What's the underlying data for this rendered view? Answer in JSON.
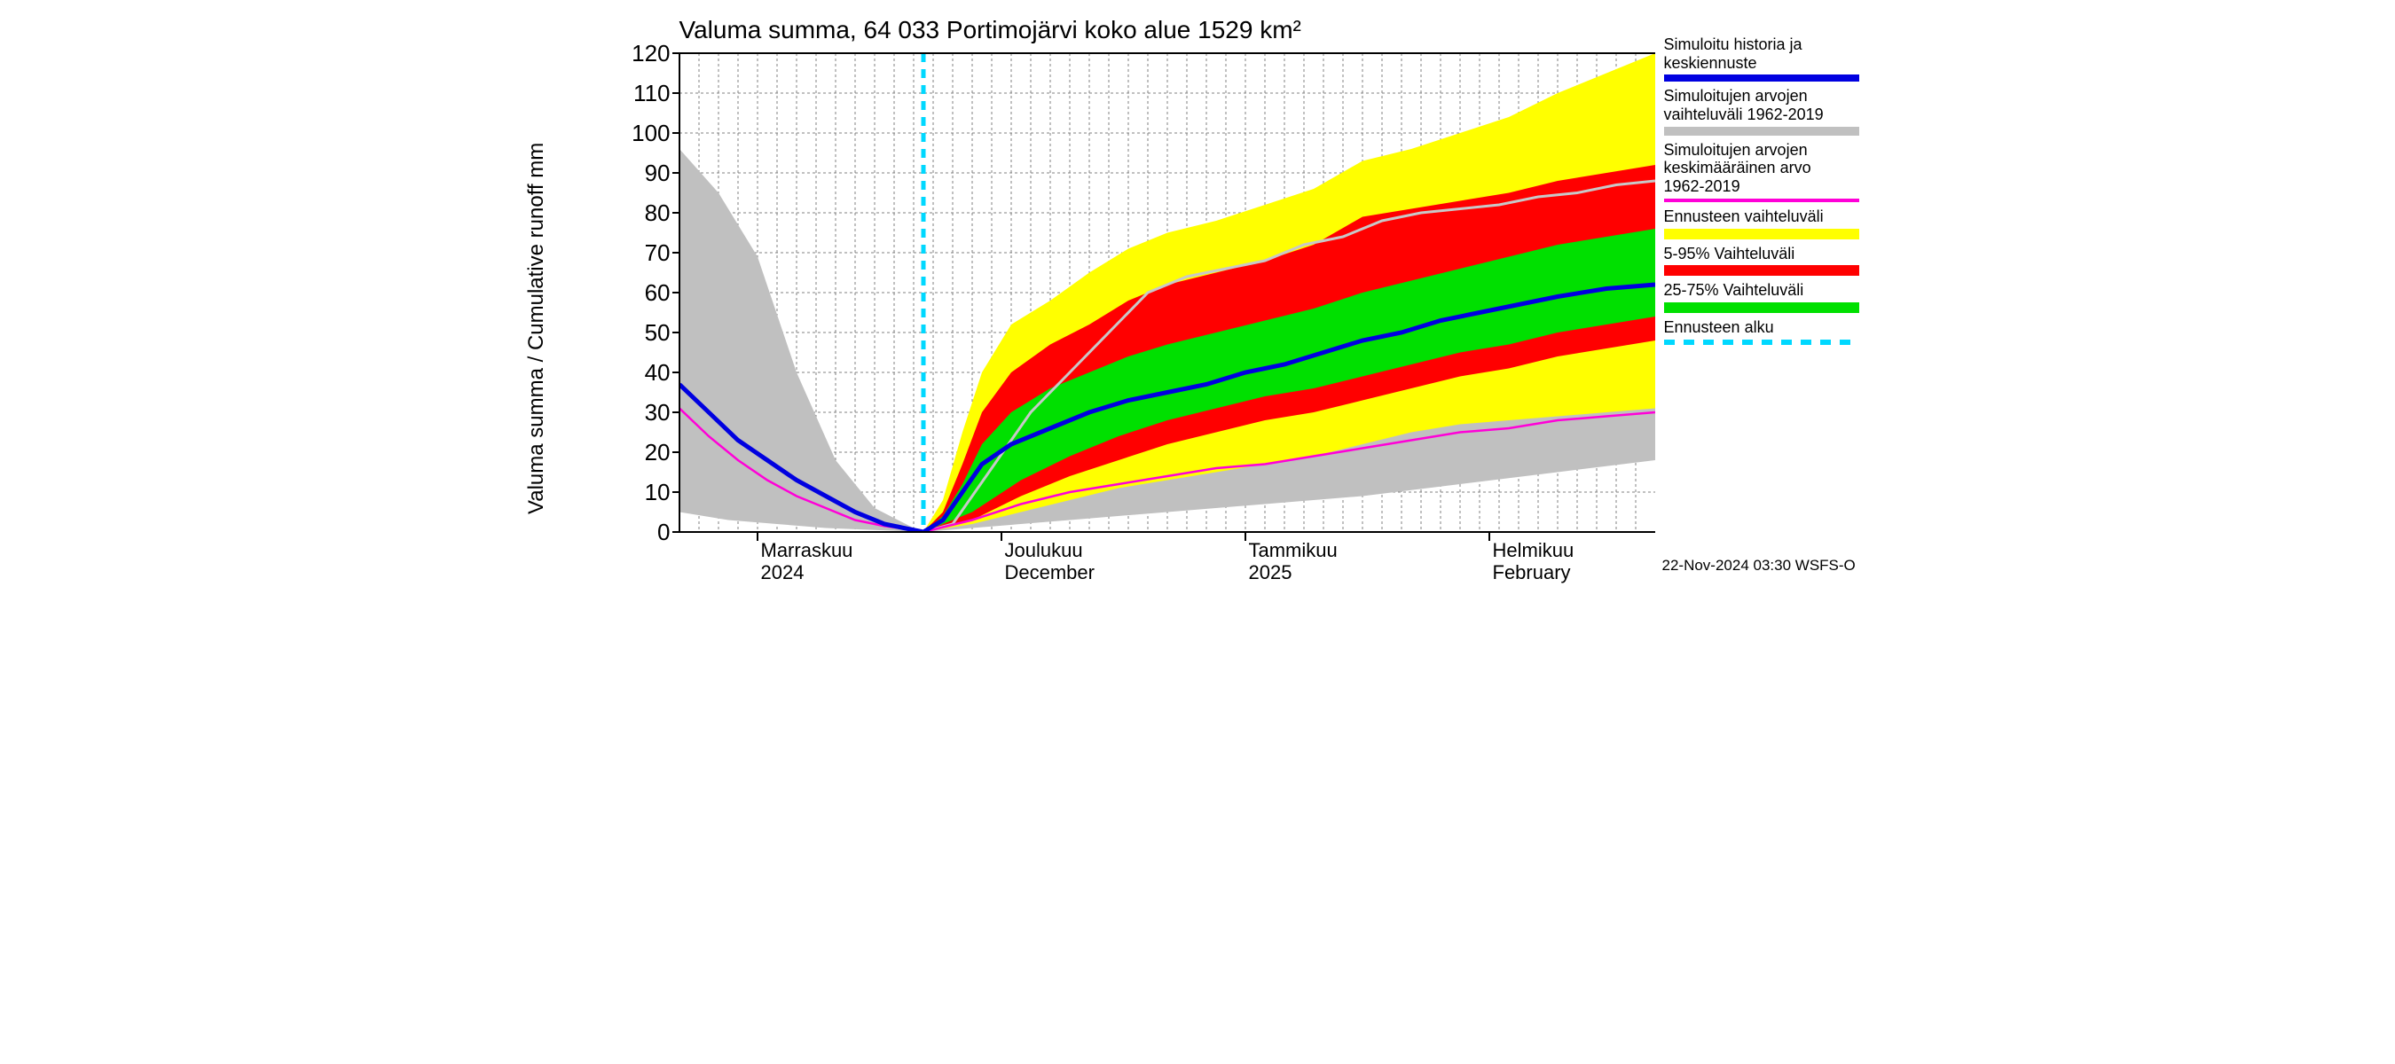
{
  "chart": {
    "type": "area-line",
    "title": "Valuma summa, 64 033 Portimojärvi koko alue 1529 km²",
    "ylabel": "Valuma summa / Cumulative runoff    mm",
    "footer": "22-Nov-2024 03:30 WSFS-O",
    "background_color": "#ffffff",
    "grid_color": "#808080",
    "axis_color": "#000000",
    "title_fontsize": 28,
    "label_fontsize": 24,
    "tick_fontsize": 24,
    "x_domain": [
      0,
      100
    ],
    "forecast_start_x": 25,
    "ylim": [
      0,
      120
    ],
    "ytick_step": 10,
    "yticks": [
      0,
      10,
      20,
      30,
      40,
      50,
      60,
      70,
      80,
      90,
      100,
      110,
      120
    ],
    "xgrid_minor": [
      2,
      4,
      6,
      8,
      10,
      12,
      14,
      16,
      18,
      20,
      22,
      24,
      26,
      28,
      30,
      32,
      34,
      36,
      38,
      40,
      42,
      44,
      46,
      48,
      50,
      52,
      54,
      56,
      58,
      60,
      62,
      64,
      66,
      68,
      70,
      72,
      74,
      76,
      78,
      80,
      82,
      84,
      86,
      88,
      90,
      92,
      94,
      96,
      98
    ],
    "xgrid_major": [
      8,
      33,
      58,
      83
    ],
    "xlabels": [
      {
        "x": 8,
        "line1": "Marraskuu",
        "line2": "2024"
      },
      {
        "x": 33,
        "line1": "Joulukuu",
        "line2": "December"
      },
      {
        "x": 58,
        "line1": "Tammikuu",
        "line2": "2025"
      },
      {
        "x": 83,
        "line1": "Helmikuu",
        "line2": "February"
      }
    ],
    "colors": {
      "history_range": "#c0c0c0",
      "forecast_wide": "#ffff00",
      "pct5_95": "#ff0000",
      "pct25_75": "#00e000",
      "median": "#0000e0",
      "mean_hist": "#ff00d8",
      "hist_upper_line": "#c8c8c8",
      "forecast_start": "#00d8ff"
    },
    "line_widths": {
      "median": 5,
      "mean_hist": 2.5,
      "hist_upper_line": 3,
      "forecast_start": 5
    },
    "series": {
      "grey_band": {
        "upper": [
          {
            "x": 0,
            "y": 96
          },
          {
            "x": 4,
            "y": 85
          },
          {
            "x": 8,
            "y": 69
          },
          {
            "x": 12,
            "y": 40
          },
          {
            "x": 16,
            "y": 18
          },
          {
            "x": 20,
            "y": 6
          },
          {
            "x": 24,
            "y": 1
          },
          {
            "x": 25,
            "y": 0
          },
          {
            "x": 28,
            "y": 2
          },
          {
            "x": 32,
            "y": 16
          },
          {
            "x": 36,
            "y": 30
          },
          {
            "x": 40,
            "y": 40
          },
          {
            "x": 44,
            "y": 50
          },
          {
            "x": 48,
            "y": 60
          },
          {
            "x": 52,
            "y": 64
          },
          {
            "x": 56,
            "y": 66
          },
          {
            "x": 60,
            "y": 68
          },
          {
            "x": 64,
            "y": 72
          },
          {
            "x": 68,
            "y": 74
          },
          {
            "x": 72,
            "y": 78
          },
          {
            "x": 76,
            "y": 80
          },
          {
            "x": 80,
            "y": 81
          },
          {
            "x": 84,
            "y": 82
          },
          {
            "x": 88,
            "y": 84
          },
          {
            "x": 92,
            "y": 85
          },
          {
            "x": 96,
            "y": 87
          },
          {
            "x": 100,
            "y": 88
          }
        ],
        "lower": [
          {
            "x": 0,
            "y": 5
          },
          {
            "x": 5,
            "y": 3
          },
          {
            "x": 10,
            "y": 2
          },
          {
            "x": 15,
            "y": 1
          },
          {
            "x": 20,
            "y": 0.5
          },
          {
            "x": 25,
            "y": 0
          },
          {
            "x": 30,
            "y": 1
          },
          {
            "x": 40,
            "y": 3
          },
          {
            "x": 50,
            "y": 5
          },
          {
            "x": 60,
            "y": 7
          },
          {
            "x": 70,
            "y": 9
          },
          {
            "x": 80,
            "y": 12
          },
          {
            "x": 90,
            "y": 15
          },
          {
            "x": 100,
            "y": 18
          }
        ]
      },
      "yellow_band": {
        "upper": [
          {
            "x": 25,
            "y": 0
          },
          {
            "x": 27,
            "y": 8
          },
          {
            "x": 29,
            "y": 25
          },
          {
            "x": 31,
            "y": 40
          },
          {
            "x": 34,
            "y": 52
          },
          {
            "x": 38,
            "y": 58
          },
          {
            "x": 42,
            "y": 65
          },
          {
            "x": 46,
            "y": 71
          },
          {
            "x": 50,
            "y": 75
          },
          {
            "x": 55,
            "y": 78
          },
          {
            "x": 60,
            "y": 82
          },
          {
            "x": 65,
            "y": 86
          },
          {
            "x": 70,
            "y": 93
          },
          {
            "x": 75,
            "y": 96
          },
          {
            "x": 80,
            "y": 100
          },
          {
            "x": 85,
            "y": 104
          },
          {
            "x": 90,
            "y": 110
          },
          {
            "x": 95,
            "y": 115
          },
          {
            "x": 100,
            "y": 120
          }
        ],
        "lower": [
          {
            "x": 25,
            "y": 0
          },
          {
            "x": 30,
            "y": 2
          },
          {
            "x": 35,
            "y": 5
          },
          {
            "x": 40,
            "y": 8
          },
          {
            "x": 45,
            "y": 11
          },
          {
            "x": 50,
            "y": 13
          },
          {
            "x": 55,
            "y": 15
          },
          {
            "x": 60,
            "y": 17
          },
          {
            "x": 65,
            "y": 19
          },
          {
            "x": 70,
            "y": 22
          },
          {
            "x": 75,
            "y": 25
          },
          {
            "x": 80,
            "y": 27
          },
          {
            "x": 85,
            "y": 28
          },
          {
            "x": 90,
            "y": 29
          },
          {
            "x": 95,
            "y": 30
          },
          {
            "x": 100,
            "y": 31
          }
        ]
      },
      "red_band": {
        "upper": [
          {
            "x": 25,
            "y": 0
          },
          {
            "x": 27,
            "y": 5
          },
          {
            "x": 29,
            "y": 17
          },
          {
            "x": 31,
            "y": 30
          },
          {
            "x": 34,
            "y": 40
          },
          {
            "x": 38,
            "y": 47
          },
          {
            "x": 42,
            "y": 52
          },
          {
            "x": 46,
            "y": 58
          },
          {
            "x": 50,
            "y": 62
          },
          {
            "x": 55,
            "y": 65
          },
          {
            "x": 60,
            "y": 68
          },
          {
            "x": 65,
            "y": 72
          },
          {
            "x": 70,
            "y": 79
          },
          {
            "x": 75,
            "y": 81
          },
          {
            "x": 80,
            "y": 83
          },
          {
            "x": 85,
            "y": 85
          },
          {
            "x": 90,
            "y": 88
          },
          {
            "x": 95,
            "y": 90
          },
          {
            "x": 100,
            "y": 92
          }
        ],
        "lower": [
          {
            "x": 25,
            "y": 0
          },
          {
            "x": 30,
            "y": 3
          },
          {
            "x": 35,
            "y": 9
          },
          {
            "x": 40,
            "y": 14
          },
          {
            "x": 45,
            "y": 18
          },
          {
            "x": 50,
            "y": 22
          },
          {
            "x": 55,
            "y": 25
          },
          {
            "x": 60,
            "y": 28
          },
          {
            "x": 65,
            "y": 30
          },
          {
            "x": 70,
            "y": 33
          },
          {
            "x": 75,
            "y": 36
          },
          {
            "x": 80,
            "y": 39
          },
          {
            "x": 85,
            "y": 41
          },
          {
            "x": 90,
            "y": 44
          },
          {
            "x": 95,
            "y": 46
          },
          {
            "x": 100,
            "y": 48
          }
        ]
      },
      "green_band": {
        "upper": [
          {
            "x": 25,
            "y": 0
          },
          {
            "x": 27,
            "y": 4
          },
          {
            "x": 29,
            "y": 12
          },
          {
            "x": 31,
            "y": 22
          },
          {
            "x": 34,
            "y": 30
          },
          {
            "x": 38,
            "y": 36
          },
          {
            "x": 42,
            "y": 40
          },
          {
            "x": 46,
            "y": 44
          },
          {
            "x": 50,
            "y": 47
          },
          {
            "x": 55,
            "y": 50
          },
          {
            "x": 60,
            "y": 53
          },
          {
            "x": 65,
            "y": 56
          },
          {
            "x": 70,
            "y": 60
          },
          {
            "x": 75,
            "y": 63
          },
          {
            "x": 80,
            "y": 66
          },
          {
            "x": 85,
            "y": 69
          },
          {
            "x": 90,
            "y": 72
          },
          {
            "x": 95,
            "y": 74
          },
          {
            "x": 100,
            "y": 76
          }
        ],
        "lower": [
          {
            "x": 25,
            "y": 0
          },
          {
            "x": 30,
            "y": 5
          },
          {
            "x": 35,
            "y": 13
          },
          {
            "x": 40,
            "y": 19
          },
          {
            "x": 45,
            "y": 24
          },
          {
            "x": 50,
            "y": 28
          },
          {
            "x": 55,
            "y": 31
          },
          {
            "x": 60,
            "y": 34
          },
          {
            "x": 65,
            "y": 36
          },
          {
            "x": 70,
            "y": 39
          },
          {
            "x": 75,
            "y": 42
          },
          {
            "x": 80,
            "y": 45
          },
          {
            "x": 85,
            "y": 47
          },
          {
            "x": 90,
            "y": 50
          },
          {
            "x": 95,
            "y": 52
          },
          {
            "x": 100,
            "y": 54
          }
        ]
      },
      "median_line": [
        {
          "x": 0,
          "y": 37
        },
        {
          "x": 3,
          "y": 30
        },
        {
          "x": 6,
          "y": 23
        },
        {
          "x": 9,
          "y": 18
        },
        {
          "x": 12,
          "y": 13
        },
        {
          "x": 15,
          "y": 9
        },
        {
          "x": 18,
          "y": 5
        },
        {
          "x": 21,
          "y": 2
        },
        {
          "x": 24,
          "y": 0.5
        },
        {
          "x": 25,
          "y": 0
        },
        {
          "x": 27,
          "y": 3
        },
        {
          "x": 29,
          "y": 10
        },
        {
          "x": 31,
          "y": 17
        },
        {
          "x": 34,
          "y": 22
        },
        {
          "x": 38,
          "y": 26
        },
        {
          "x": 42,
          "y": 30
        },
        {
          "x": 46,
          "y": 33
        },
        {
          "x": 50,
          "y": 35
        },
        {
          "x": 54,
          "y": 37
        },
        {
          "x": 58,
          "y": 40
        },
        {
          "x": 62,
          "y": 42
        },
        {
          "x": 66,
          "y": 45
        },
        {
          "x": 70,
          "y": 48
        },
        {
          "x": 74,
          "y": 50
        },
        {
          "x": 78,
          "y": 53
        },
        {
          "x": 82,
          "y": 55
        },
        {
          "x": 86,
          "y": 57
        },
        {
          "x": 90,
          "y": 59
        },
        {
          "x": 95,
          "y": 61
        },
        {
          "x": 100,
          "y": 62
        }
      ],
      "mean_hist_line": [
        {
          "x": 0,
          "y": 31
        },
        {
          "x": 3,
          "y": 24
        },
        {
          "x": 6,
          "y": 18
        },
        {
          "x": 9,
          "y": 13
        },
        {
          "x": 12,
          "y": 9
        },
        {
          "x": 15,
          "y": 6
        },
        {
          "x": 18,
          "y": 3
        },
        {
          "x": 21,
          "y": 1.5
        },
        {
          "x": 24,
          "y": 0.5
        },
        {
          "x": 25,
          "y": 0
        },
        {
          "x": 30,
          "y": 3
        },
        {
          "x": 35,
          "y": 7
        },
        {
          "x": 40,
          "y": 10
        },
        {
          "x": 45,
          "y": 12
        },
        {
          "x": 50,
          "y": 14
        },
        {
          "x": 55,
          "y": 16
        },
        {
          "x": 60,
          "y": 17
        },
        {
          "x": 65,
          "y": 19
        },
        {
          "x": 70,
          "y": 21
        },
        {
          "x": 75,
          "y": 23
        },
        {
          "x": 80,
          "y": 25
        },
        {
          "x": 85,
          "y": 26
        },
        {
          "x": 90,
          "y": 28
        },
        {
          "x": 95,
          "y": 29
        },
        {
          "x": 100,
          "y": 30
        }
      ],
      "grey_upper_line": [
        {
          "x": 25,
          "y": 0
        },
        {
          "x": 28,
          "y": 2
        },
        {
          "x": 32,
          "y": 16
        },
        {
          "x": 36,
          "y": 30
        },
        {
          "x": 40,
          "y": 40
        },
        {
          "x": 44,
          "y": 50
        },
        {
          "x": 48,
          "y": 60
        },
        {
          "x": 52,
          "y": 64
        },
        {
          "x": 56,
          "y": 66
        },
        {
          "x": 60,
          "y": 68
        },
        {
          "x": 64,
          "y": 72
        },
        {
          "x": 68,
          "y": 74
        },
        {
          "x": 72,
          "y": 78
        },
        {
          "x": 76,
          "y": 80
        },
        {
          "x": 80,
          "y": 81
        },
        {
          "x": 84,
          "y": 82
        },
        {
          "x": 88,
          "y": 84
        },
        {
          "x": 92,
          "y": 85
        },
        {
          "x": 96,
          "y": 87
        },
        {
          "x": 100,
          "y": 88
        }
      ]
    },
    "legend": [
      {
        "label": "Simuloitu historia ja keskiennuste",
        "type": "line",
        "color": "#0000e0",
        "h": 8
      },
      {
        "label": "Simuloitujen arvojen vaihteluväli 1962-2019",
        "type": "bar",
        "color": "#c0c0c0",
        "h": 10
      },
      {
        "label": "Simuloitujen arvojen keskimääräinen arvo\n 1962-2019",
        "type": "line",
        "color": "#ff00d8",
        "h": 4
      },
      {
        "label": "Ennusteen vaihteluväli",
        "type": "bar",
        "color": "#ffff00",
        "h": 12
      },
      {
        "label": "5-95% Vaihteluväli",
        "type": "bar",
        "color": "#ff0000",
        "h": 12
      },
      {
        "label": "25-75% Vaihteluväli",
        "type": "bar",
        "color": "#00e000",
        "h": 12
      },
      {
        "label": "Ennusteen alku",
        "type": "dash",
        "color": "#00d8ff",
        "h": 6
      }
    ]
  }
}
